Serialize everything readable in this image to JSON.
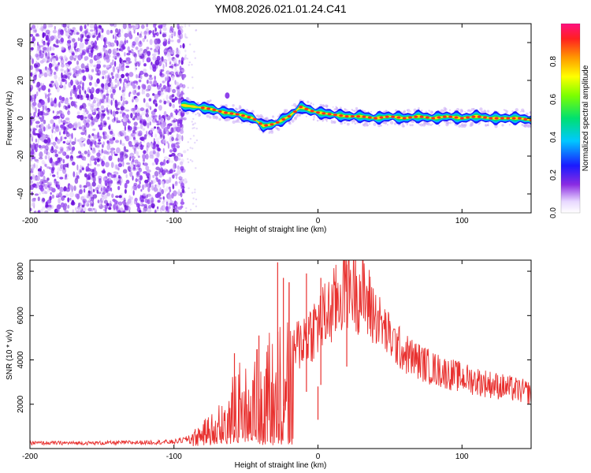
{
  "title": "YM08.2026.021.01.24.C41",
  "colors": {
    "snr_line": "#e8302e",
    "scatter_purple": "#7a1fe6",
    "background": "#ffffff"
  },
  "chart_data": [
    {
      "type": "heatmap",
      "name": "spectrogram",
      "xlabel": "Height of straight line (km)",
      "ylabel": "Frequency (Hz)",
      "xlim": [
        -200,
        148
      ],
      "ylim": [
        -50,
        50
      ],
      "xticks": [
        -200,
        -100,
        0,
        100
      ],
      "yticks": [
        -40,
        -20,
        0,
        20,
        40
      ],
      "xtick_labels": [
        "-200",
        "-100",
        "0",
        "100"
      ],
      "ytick_labels": [
        "-40",
        "-20",
        "0",
        "20",
        "40"
      ],
      "noise_region_x": [
        -200,
        -92
      ],
      "ridge_x": [
        -95,
        -85,
        -75,
        -65,
        -55,
        -45,
        -38,
        -30,
        -20,
        -12,
        -5,
        0,
        10,
        20,
        30,
        40,
        50,
        60,
        70,
        80,
        90,
        100,
        110,
        120,
        130,
        140,
        148
      ],
      "ridge_freq": [
        7,
        6,
        5,
        3,
        2,
        0,
        -4,
        -3,
        1,
        6,
        4,
        3,
        2,
        1,
        1,
        0,
        1,
        0,
        1,
        0,
        1,
        0,
        1,
        0,
        0,
        0,
        -1
      ],
      "colorbar": {
        "label": "Normalized spectral amplitude",
        "range": [
          0,
          1
        ],
        "ticks": [
          0.0,
          0.2,
          0.4,
          0.6,
          0.8
        ],
        "tick_labels": [
          "0.0",
          "0.2",
          "0.4",
          "0.6",
          "0.8"
        ]
      }
    },
    {
      "type": "line",
      "name": "snr",
      "xlabel": "Height of straight line (km)",
      "ylabel": "SNR (10 * v/v)",
      "xlim": [
        -200,
        148
      ],
      "ylim": [
        0,
        8500
      ],
      "xticks": [
        -200,
        -100,
        0,
        100
      ],
      "yticks": [
        2000,
        4000,
        6000,
        8000
      ],
      "xtick_labels": [
        "-200",
        "-100",
        "0",
        "100"
      ],
      "ytick_labels": [
        "2000",
        "4000",
        "6000",
        "8000"
      ],
      "envelope_x": [
        -200,
        -150,
        -100,
        -85,
        -70,
        -60,
        -55,
        -50,
        -40,
        -30,
        -20,
        -10,
        0,
        10,
        20,
        25,
        30,
        40,
        50,
        60,
        80,
        100,
        120,
        148
      ],
      "envelope_y": [
        250,
        250,
        300,
        500,
        1000,
        1700,
        2400,
        2000,
        2600,
        3300,
        4200,
        5000,
        5600,
        6300,
        7400,
        7300,
        7000,
        6000,
        5000,
        4300,
        3600,
        3200,
        2900,
        2500
      ],
      "spikes": [
        {
          "x": -58,
          "y": 4300
        },
        {
          "x": -41,
          "y": 5100
        },
        {
          "x": -28,
          "y": 8400
        },
        {
          "x": -24,
          "y": 7700
        },
        {
          "x": -20,
          "y": 7500
        },
        {
          "x": -8,
          "y": 7900
        },
        {
          "x": 2,
          "y": 7700
        },
        {
          "x": 20,
          "y": 8300
        },
        {
          "x": 0,
          "y": 1300
        }
      ]
    }
  ]
}
